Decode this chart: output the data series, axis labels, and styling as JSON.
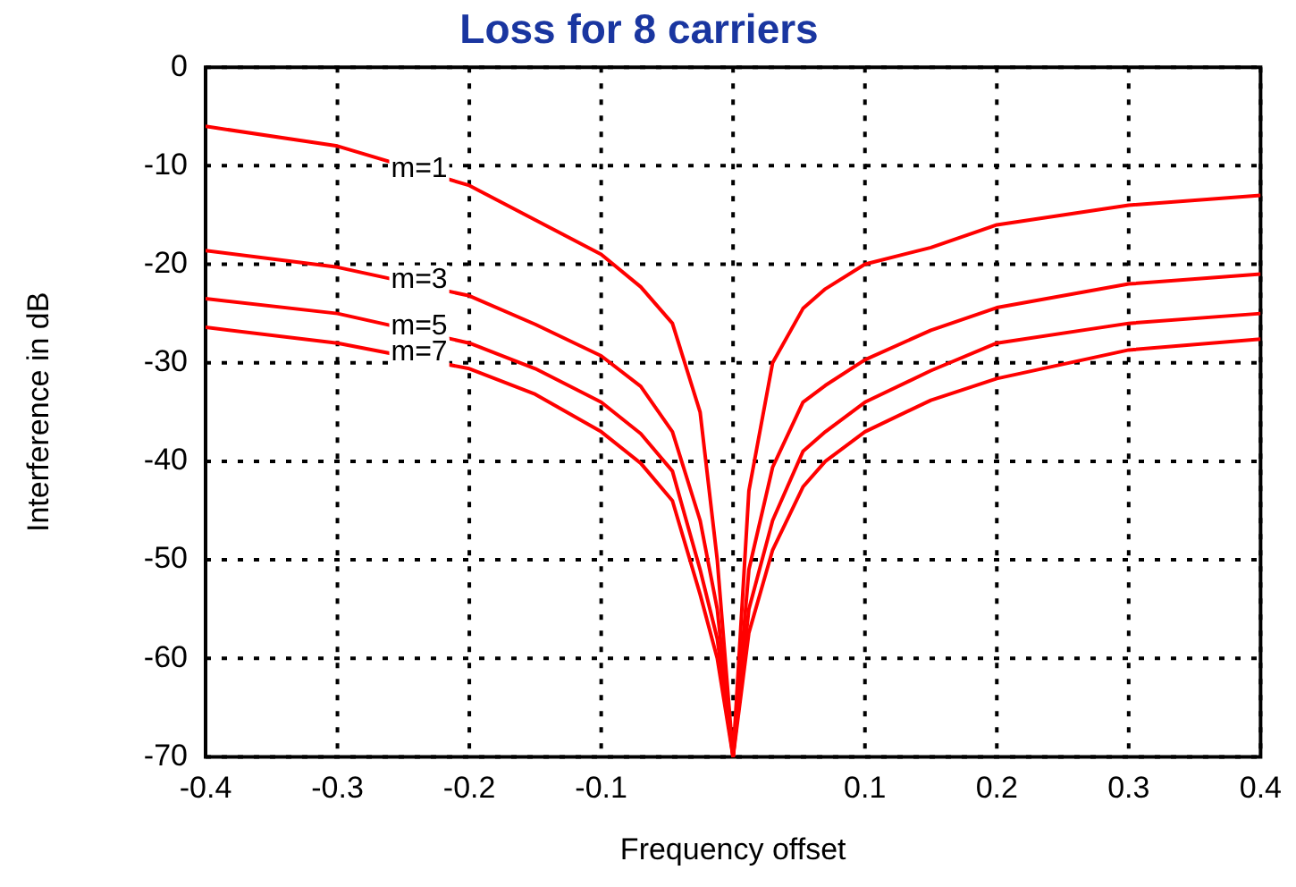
{
  "chart_data": {
    "type": "line",
    "title": "Loss for 8 carriers",
    "xlabel": "Frequency offset",
    "ylabel": "Interference in dB",
    "x": [
      -0.4,
      -0.3,
      -0.2,
      -0.15,
      -0.1,
      -0.07,
      -0.046,
      -0.025,
      -0.012,
      0,
      0.012,
      0.03,
      0.053,
      0.07,
      0.1,
      0.15,
      0.2,
      0.3,
      0.4
    ],
    "series": [
      {
        "name": "m=1",
        "color": "#ff0000",
        "values": [
          -6,
          -8,
          -12,
          -15.5,
          -19,
          -22.3,
          -26,
          -35,
          -50,
          -70,
          -43,
          -30,
          -24.5,
          -22.5,
          -20,
          -18.3,
          -16,
          -14,
          -13
        ]
      },
      {
        "name": "m=3",
        "color": "#ff0000",
        "values": [
          -18.6,
          -20.3,
          -23.2,
          -26.1,
          -29.3,
          -32.4,
          -37,
          -46,
          -55,
          -70,
          -51,
          -40.6,
          -34,
          -32.3,
          -29.7,
          -26.7,
          -24.4,
          -22,
          -21
        ]
      },
      {
        "name": "m=5",
        "color": "#ff0000",
        "values": [
          -23.5,
          -25,
          -28,
          -30.6,
          -34,
          -37.2,
          -41,
          -51,
          -58,
          -70,
          -55,
          -46,
          -39,
          -37,
          -34,
          -30.8,
          -28,
          -26,
          -25
        ]
      },
      {
        "name": "m=7",
        "color": "#ff0000",
        "values": [
          -26.4,
          -28,
          -30.6,
          -33.2,
          -37,
          -40.2,
          -44,
          -53.5,
          -60,
          -70,
          -57.4,
          -49,
          -42.6,
          -40,
          -37,
          -33.8,
          -31.6,
          -28.7,
          -27.6
        ]
      }
    ],
    "xlim": [
      -0.4,
      0.4
    ],
    "ylim": [
      -70,
      0
    ],
    "xticks": [
      -0.4,
      -0.3,
      -0.2,
      -0.1,
      {
        "value": 0,
        "label": null
      },
      0.1,
      0.2,
      0.3,
      0.4
    ],
    "yticks": [
      -70,
      -60,
      -50,
      -40,
      -30,
      -20,
      -10,
      0
    ],
    "grid": true,
    "legend": false,
    "marker": "none",
    "line_style": "solid"
  }
}
